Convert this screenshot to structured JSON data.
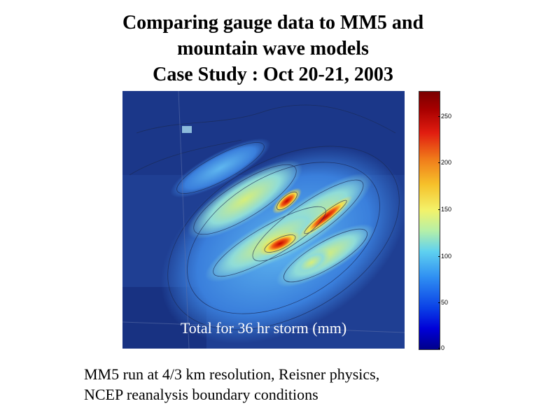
{
  "title": {
    "line1": "Comparing gauge data to MM5 and",
    "line2": "mountain wave models",
    "line3": "Case Study : Oct 20-21, 2003"
  },
  "map": {
    "caption": "Total for 36 hr storm (mm)"
  },
  "colorbar": {
    "ticks": [
      "250",
      "200",
      "150",
      "100",
      "50",
      "0"
    ],
    "values": [
      250,
      200,
      150,
      100,
      50,
      0
    ],
    "max": 280,
    "colors": [
      "#00008a",
      "#2f8ff2",
      "#5fd1f0",
      "#f3f26a",
      "#f07a1a",
      "#e11d10",
      "#7a0000"
    ]
  },
  "footnote": {
    "line1": "MM5 run at 4/3 km resolution, Reisner physics,",
    "line2": "NCEP reanalysis boundary conditions"
  }
}
